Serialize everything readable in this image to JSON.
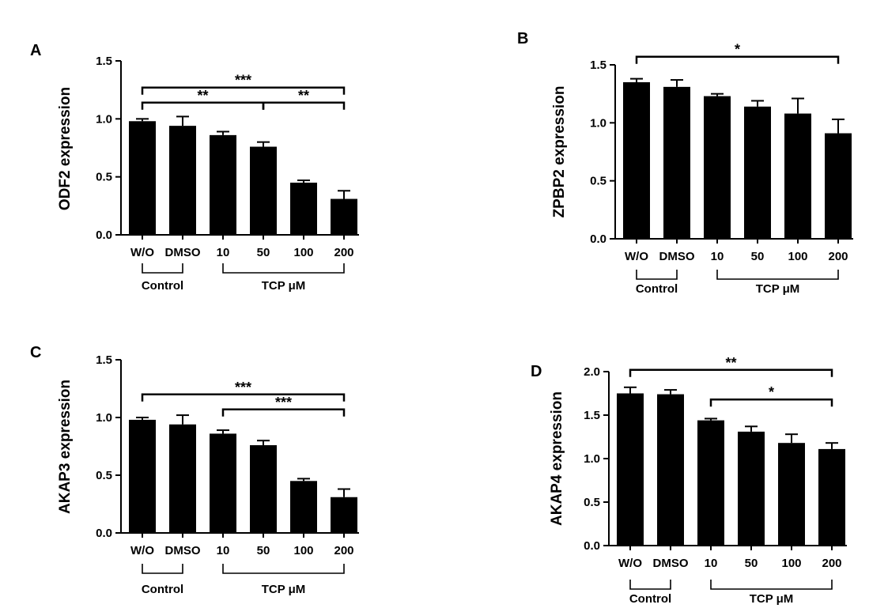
{
  "chart_data": [
    {
      "type": "bar",
      "panel": "A",
      "ylabel": "ODF2 expression",
      "ylim": [
        0,
        1.5
      ],
      "yticks": [
        "0.0",
        "0.5",
        "1.0",
        "1.5"
      ],
      "categories": [
        "W/O",
        "DMSO",
        "10",
        "50",
        "100",
        "200"
      ],
      "values": [
        0.98,
        0.94,
        0.86,
        0.76,
        0.45,
        0.31
      ],
      "errors": [
        0.02,
        0.08,
        0.03,
        0.04,
        0.02,
        0.07
      ],
      "groups": [
        {
          "label": "Control",
          "from": 0,
          "to": 1
        },
        {
          "label": "TCP μM",
          "from": 2,
          "to": 5
        }
      ],
      "significance": [
        {
          "from": 0,
          "to": 5,
          "label": "***",
          "y": 1.27
        },
        {
          "from": 0,
          "to": 3,
          "label": "**",
          "y": 1.14
        },
        {
          "from": 3,
          "to": 5,
          "label": "**",
          "y": 1.14
        }
      ]
    },
    {
      "type": "bar",
      "panel": "B",
      "ylabel": "ZPBP2 expression",
      "ylim": [
        0,
        1.5
      ],
      "yticks": [
        "0.0",
        "0.5",
        "1.0",
        "1.5"
      ],
      "categories": [
        "W/O",
        "DMSO",
        "10",
        "50",
        "100",
        "200"
      ],
      "values": [
        1.35,
        1.31,
        1.23,
        1.14,
        1.08,
        0.91
      ],
      "errors": [
        0.03,
        0.06,
        0.02,
        0.05,
        0.13,
        0.12
      ],
      "groups": [
        {
          "label": "Control",
          "from": 0,
          "to": 1
        },
        {
          "label": "TCP μM",
          "from": 2,
          "to": 5
        }
      ],
      "significance": [
        {
          "from": 0,
          "to": 5,
          "label": "*",
          "y": 1.57
        }
      ]
    },
    {
      "type": "bar",
      "panel": "C",
      "ylabel": "AKAP3 expression",
      "ylim": [
        0,
        1.5
      ],
      "yticks": [
        "0.0",
        "0.5",
        "1.0",
        "1.5"
      ],
      "categories": [
        "W/O",
        "DMSO",
        "10",
        "50",
        "100",
        "200"
      ],
      "values": [
        0.98,
        0.94,
        0.86,
        0.76,
        0.45,
        0.31
      ],
      "errors": [
        0.02,
        0.08,
        0.03,
        0.04,
        0.02,
        0.07
      ],
      "groups": [
        {
          "label": "Control",
          "from": 0,
          "to": 1
        },
        {
          "label": "TCP μM",
          "from": 2,
          "to": 5
        }
      ],
      "significance": [
        {
          "from": 0,
          "to": 5,
          "label": "***",
          "y": 1.2
        },
        {
          "from": 2,
          "to": 5,
          "label": "***",
          "y": 1.07
        }
      ]
    },
    {
      "type": "bar",
      "panel": "D",
      "ylabel": "AKAP4 expression",
      "ylim": [
        0,
        2.0
      ],
      "yticks": [
        "0.0",
        "0.5",
        "1.0",
        "1.5",
        "2.0"
      ],
      "categories": [
        "W/O",
        "DMSO",
        "10",
        "50",
        "100",
        "200"
      ],
      "values": [
        1.75,
        1.74,
        1.44,
        1.31,
        1.18,
        1.11
      ],
      "errors": [
        0.07,
        0.05,
        0.02,
        0.06,
        0.1,
        0.07
      ],
      "groups": [
        {
          "label": "Control",
          "from": 0,
          "to": 1
        },
        {
          "label": "TCP μM",
          "from": 2,
          "to": 5
        }
      ],
      "significance": [
        {
          "from": 0,
          "to": 5,
          "label": "**",
          "y": 2.02
        },
        {
          "from": 2,
          "to": 5,
          "label": "*",
          "y": 1.68
        }
      ]
    }
  ]
}
